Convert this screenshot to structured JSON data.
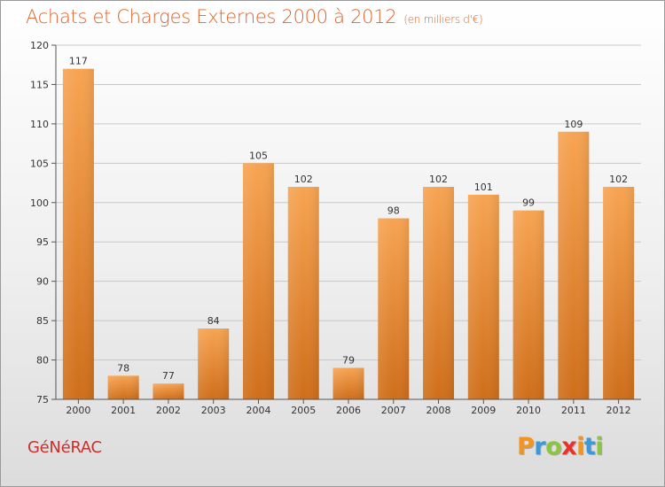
{
  "header": {
    "title": "Achats et Charges Externes 2000 à 2012",
    "subtitle": "(en milliers d'€)"
  },
  "footer": {
    "commune": "GéNéRAC",
    "logo_letters": [
      "P",
      "r",
      "o",
      "x",
      "i",
      "t",
      "i"
    ],
    "logo_colors": [
      "#f29420",
      "#3a9ad9",
      "#8cc63f",
      "#e8332a",
      "#f29420",
      "#3a9ad9",
      "#8cc63f"
    ]
  },
  "colors": {
    "bar_top": "#f7a452",
    "bar_bottom": "#cf6e1a",
    "grid": "#c8c8c8",
    "axis": "#555555"
  },
  "chart_data": {
    "type": "bar",
    "title": "Achats et Charges Externes 2000 à 2012",
    "subtitle": "(en milliers d'€)",
    "xlabel": "",
    "ylabel": "",
    "categories": [
      "2000",
      "2001",
      "2002",
      "2003",
      "2004",
      "2005",
      "2006",
      "2007",
      "2008",
      "2009",
      "2010",
      "2011",
      "2012"
    ],
    "values": [
      117,
      78,
      77,
      84,
      105,
      102,
      79,
      98,
      102,
      101,
      99,
      109,
      102
    ],
    "ylim": [
      75,
      120
    ],
    "yticks": [
      75,
      80,
      85,
      90,
      95,
      100,
      105,
      110,
      115,
      120
    ],
    "grid": true,
    "legend": "none"
  }
}
